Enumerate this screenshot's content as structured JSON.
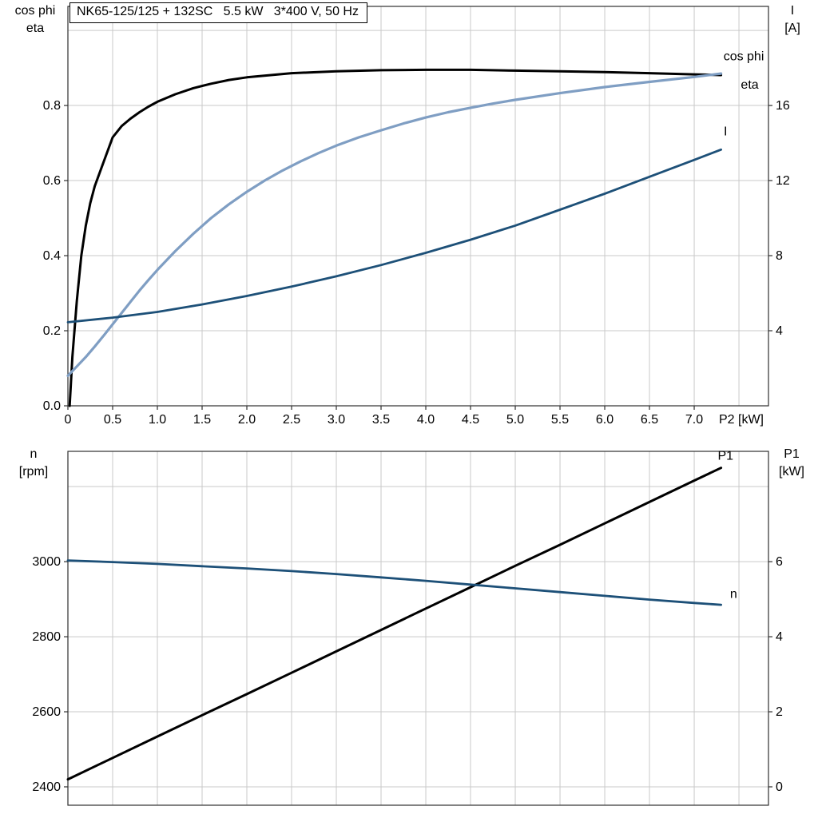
{
  "title": "NK65-125/125 + 132SC   5.5 kW   3*400 V, 50 Hz",
  "axis_titles": {
    "top_left_1": "cos phi",
    "top_left_2": "eta",
    "top_right_1": "I",
    "top_right_2": "[A]",
    "bottom_left_1": "n",
    "bottom_left_2": "[rpm]",
    "bottom_right_1": "P1",
    "bottom_right_2": "[kW]"
  },
  "colors": {
    "black": "#000000",
    "light_blue": "#7f9ec3",
    "dark_blue": "#1d5078",
    "grid": "#c9c9c9"
  },
  "chart_data": [
    {
      "type": "line",
      "title": "NK65-125/125 + 132SC   5.5 kW   3*400 V, 50 Hz",
      "x_axis": {
        "label": "P2 [kW]",
        "range": [
          0,
          7.83
        ],
        "ticks": [
          0,
          0.5,
          1.0,
          1.5,
          2.0,
          2.5,
          3.0,
          3.5,
          4.0,
          4.5,
          5.0,
          5.5,
          6.0,
          6.5,
          7.0
        ],
        "tick_labels": [
          "0",
          "0.5",
          "1.0",
          "1.5",
          "2.0",
          "2.5",
          "3.0",
          "3.5",
          "4.0",
          "4.5",
          "5.0",
          "5.5",
          "6.0",
          "6.5",
          "7.0"
        ],
        "grid": [
          0,
          0.5,
          1.0,
          1.5,
          2.0,
          2.5,
          3.0,
          3.5,
          4.0,
          4.5,
          5.0,
          5.5,
          6.0,
          6.5,
          7.0,
          7.5
        ]
      },
      "y_left": {
        "label": "cos phi / eta",
        "range": [
          0,
          1.064
        ],
        "ticks": [
          0.0,
          0.2,
          0.4,
          0.6,
          0.8
        ],
        "tick_labels": [
          "0.0",
          "0.2",
          "0.4",
          "0.6",
          "0.8"
        ],
        "grid": [
          0,
          0.2,
          0.4,
          0.6,
          0.8,
          1.0
        ]
      },
      "y_right": {
        "label": "I [A]",
        "range": [
          0,
          21.28
        ],
        "ticks": [
          4,
          8,
          12,
          16
        ],
        "tick_labels": [
          "4",
          "8",
          "12",
          "16"
        ],
        "grid": []
      },
      "series": [
        {
          "name": "eta",
          "axis": "left",
          "color": "#000000",
          "width": 3,
          "x": [
            0.02,
            0.05,
            0.1,
            0.15,
            0.2,
            0.25,
            0.3,
            0.4,
            0.5,
            0.6,
            0.7,
            0.8,
            0.9,
            1.0,
            1.2,
            1.4,
            1.6,
            1.8,
            2.0,
            2.5,
            3.0,
            3.5,
            4.0,
            4.5,
            5.0,
            5.5,
            6.0,
            6.5,
            7.0,
            7.3
          ],
          "y": [
            0.0,
            0.13,
            0.28,
            0.4,
            0.48,
            0.54,
            0.585,
            0.65,
            0.715,
            0.745,
            0.765,
            0.782,
            0.797,
            0.81,
            0.83,
            0.846,
            0.858,
            0.868,
            0.875,
            0.886,
            0.891,
            0.894,
            0.895,
            0.895,
            0.893,
            0.891,
            0.889,
            0.886,
            0.883,
            0.881
          ]
        },
        {
          "name": "cos phi",
          "axis": "left",
          "color": "#7f9ec3",
          "width": 3.2,
          "x": [
            0,
            0.1,
            0.2,
            0.3,
            0.4,
            0.5,
            0.6,
            0.7,
            0.8,
            0.9,
            1.0,
            1.2,
            1.4,
            1.6,
            1.8,
            2.0,
            2.2,
            2.4,
            2.6,
            2.8,
            3.0,
            3.25,
            3.5,
            3.75,
            4.0,
            4.25,
            4.5,
            4.75,
            5.0,
            5.5,
            6.0,
            6.5,
            7.0,
            7.3
          ],
          "y": [
            0.08,
            0.105,
            0.13,
            0.158,
            0.187,
            0.217,
            0.247,
            0.277,
            0.307,
            0.335,
            0.362,
            0.412,
            0.458,
            0.5,
            0.537,
            0.57,
            0.6,
            0.627,
            0.651,
            0.673,
            0.693,
            0.715,
            0.734,
            0.752,
            0.768,
            0.782,
            0.794,
            0.805,
            0.815,
            0.833,
            0.849,
            0.863,
            0.876,
            0.885
          ]
        },
        {
          "name": "I",
          "axis": "right",
          "color": "#1d5078",
          "width": 2.8,
          "x": [
            0,
            0.5,
            1.0,
            1.5,
            2.0,
            2.5,
            3.0,
            3.5,
            4.0,
            4.5,
            5.0,
            5.5,
            6.0,
            6.5,
            7.0,
            7.3
          ],
          "y": [
            4.45,
            4.7,
            5.0,
            5.4,
            5.85,
            6.35,
            6.9,
            7.5,
            8.15,
            8.85,
            9.6,
            10.45,
            11.3,
            12.2,
            13.1,
            13.65
          ]
        }
      ],
      "annotations": [
        {
          "text": "cos phi",
          "x": 7.78,
          "y": 0.92,
          "axis": "left",
          "color": "#7f9ec3",
          "anchor": "end"
        },
        {
          "text": "eta",
          "x": 7.72,
          "y": 0.845,
          "axis": "left",
          "color": "#000000",
          "anchor": "end"
        },
        {
          "text": "I",
          "x": 7.33,
          "y": 0.72,
          "axis": "left",
          "color": "#1d5078",
          "anchor": "start"
        }
      ]
    },
    {
      "type": "line",
      "title": "",
      "x_axis": {
        "label": "",
        "range": [
          0,
          7.83
        ],
        "ticks": [],
        "tick_labels": [],
        "grid": [
          0,
          0.5,
          1.0,
          1.5,
          2.0,
          2.5,
          3.0,
          3.5,
          4.0,
          4.5,
          5.0,
          5.5,
          6.0,
          6.5,
          7.0,
          7.5
        ]
      },
      "y_left": {
        "label": "n [rpm]",
        "range": [
          2351,
          3294
        ],
        "ticks": [
          2400,
          2600,
          2800,
          3000
        ],
        "tick_labels": [
          "2400",
          "2600",
          "2800",
          "3000"
        ],
        "grid": [
          2400,
          2600,
          2800,
          3000,
          3200
        ]
      },
      "y_right": {
        "label": "P1 [kW]",
        "range": [
          -0.49,
          8.94
        ],
        "ticks": [
          0,
          2,
          4,
          6
        ],
        "tick_labels": [
          "0",
          "2",
          "4",
          "6"
        ],
        "grid": []
      },
      "series": [
        {
          "name": "P1",
          "axis": "right",
          "color": "#000000",
          "width": 3,
          "x": [
            0,
            0.5,
            1,
            1.5,
            2,
            2.5,
            3,
            3.5,
            4,
            4.5,
            5,
            5.5,
            6,
            6.5,
            7,
            7.3
          ],
          "y": [
            0.2,
            0.77,
            1.34,
            1.91,
            2.47,
            3.04,
            3.61,
            4.18,
            4.75,
            5.32,
            5.89,
            6.45,
            7.02,
            7.59,
            8.16,
            8.5
          ]
        },
        {
          "name": "n",
          "axis": "left",
          "color": "#1d5078",
          "width": 2.8,
          "x": [
            0,
            0.5,
            1,
            1.5,
            2,
            2.5,
            3,
            3.5,
            4,
            4.5,
            5,
            5.5,
            6,
            6.5,
            7,
            7.3
          ],
          "y": [
            3003,
            2999,
            2994,
            2988,
            2982,
            2975,
            2967,
            2958,
            2949,
            2939,
            2929,
            2919,
            2909,
            2899,
            2890,
            2885
          ]
        }
      ],
      "annotations": [
        {
          "text": "P1",
          "x": 7.35,
          "y": 3272,
          "axis": "left",
          "color": "#000000",
          "anchor": "middle"
        },
        {
          "text": "n",
          "x": 7.4,
          "y": 2903,
          "axis": "left",
          "color": "#1d5078",
          "anchor": "start"
        }
      ]
    }
  ]
}
